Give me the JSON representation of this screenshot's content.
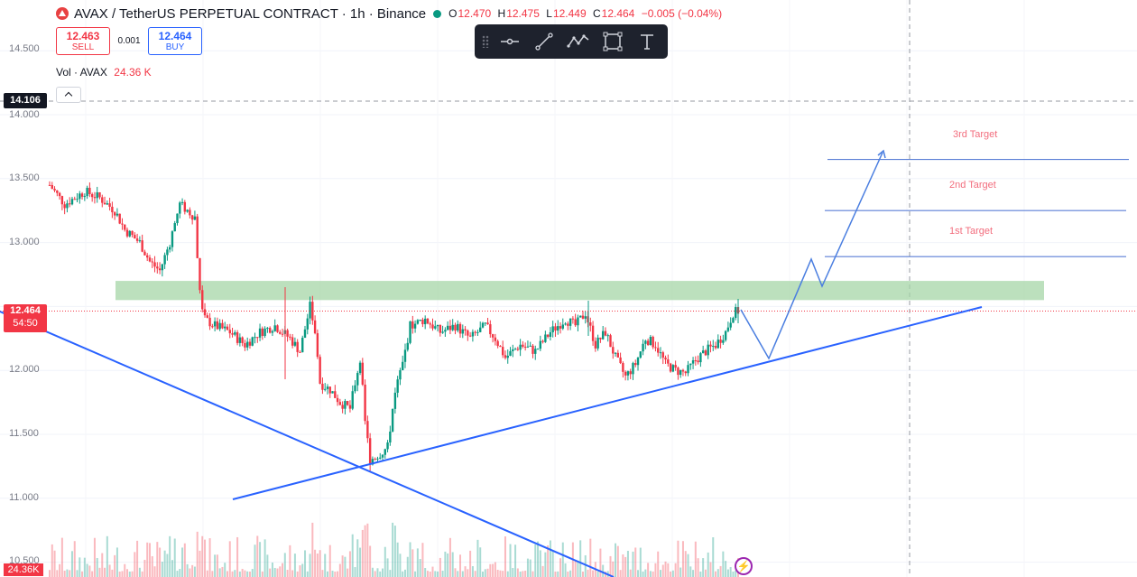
{
  "header": {
    "title": "AVAX / TetherUS PERPETUAL CONTRACT · 1h · Binance",
    "ohlc": [
      {
        "key": "O",
        "value": "12.470"
      },
      {
        "key": "H",
        "value": "12.475"
      },
      {
        "key": "L",
        "value": "12.449"
      },
      {
        "key": "C",
        "value": "12.464"
      }
    ],
    "change": "−0.005 (−0.04%)"
  },
  "trade": {
    "sell_price": "12.463",
    "sell_label": "SELL",
    "spread": "0.001",
    "buy_price": "12.464",
    "buy_label": "BUY"
  },
  "volume": {
    "label": "Vol · AVAX",
    "value": "24.36 K",
    "badge": "24.36K"
  },
  "toolbar": {
    "tools": [
      "horizontal-ray-icon",
      "trend-line-icon",
      "path-icon",
      "rectangle-icon",
      "text-icon"
    ]
  },
  "axis": {
    "ticks": [
      "14.500",
      "14.000",
      "13.500",
      "13.000",
      "12.000",
      "11.500",
      "11.000",
      "10.500"
    ],
    "crosshair_price": "14.106",
    "last_price": "12.464",
    "countdown": "54:50"
  },
  "targets": [
    "1st Target",
    "2nd Target",
    "3rd Target"
  ],
  "colors": {
    "up": "#089981",
    "down": "#f23645",
    "line": "#2962ff",
    "zone": "#a5d6a7"
  },
  "chart_data": {
    "type": "candlestick",
    "symbol": "AVAXUSDT.P",
    "interval": "1h",
    "ylim": [
      10.44,
      14.9
    ],
    "key_levels": {
      "resistance_zone": [
        12.55,
        12.7
      ],
      "targets": [
        12.89,
        13.25,
        13.65
      ],
      "last": 12.464
    },
    "close_path": [
      [
        0,
        13.45
      ],
      [
        6,
        13.3
      ],
      [
        14,
        13.4
      ],
      [
        20,
        13.35
      ],
      [
        26,
        13.25
      ],
      [
        30,
        13.1
      ],
      [
        36,
        13.0
      ],
      [
        40,
        12.85
      ],
      [
        44,
        12.78
      ],
      [
        48,
        13.0
      ],
      [
        52,
        13.3
      ],
      [
        55,
        13.25
      ],
      [
        58,
        13.2
      ],
      [
        60,
        12.6
      ],
      [
        62,
        12.4
      ],
      [
        66,
        12.35
      ],
      [
        72,
        12.3
      ],
      [
        78,
        12.2
      ],
      [
        84,
        12.3
      ],
      [
        90,
        12.35
      ],
      [
        96,
        12.25
      ],
      [
        100,
        12.15
      ],
      [
        104,
        12.5
      ],
      [
        106,
        12.3
      ],
      [
        108,
        11.9
      ],
      [
        112,
        11.85
      ],
      [
        116,
        11.75
      ],
      [
        120,
        11.7
      ],
      [
        124,
        12.1
      ],
      [
        126,
        11.6
      ],
      [
        128,
        11.3
      ],
      [
        132,
        11.35
      ],
      [
        135,
        11.4
      ],
      [
        138,
        11.85
      ],
      [
        141,
        12.05
      ],
      [
        144,
        12.35
      ],
      [
        150,
        12.4
      ],
      [
        156,
        12.3
      ],
      [
        162,
        12.35
      ],
      [
        168,
        12.25
      ],
      [
        174,
        12.35
      ],
      [
        178,
        12.25
      ],
      [
        182,
        12.1
      ],
      [
        188,
        12.2
      ],
      [
        194,
        12.15
      ],
      [
        200,
        12.3
      ],
      [
        206,
        12.4
      ],
      [
        210,
        12.35
      ],
      [
        214,
        12.45
      ],
      [
        218,
        12.2
      ],
      [
        222,
        12.3
      ],
      [
        226,
        12.1
      ],
      [
        230,
        11.95
      ],
      [
        234,
        12.05
      ],
      [
        238,
        12.25
      ],
      [
        242,
        12.2
      ],
      [
        246,
        12.05
      ],
      [
        250,
        12.0
      ],
      [
        254,
        11.98
      ],
      [
        258,
        12.08
      ],
      [
        262,
        12.15
      ],
      [
        266,
        12.2
      ],
      [
        270,
        12.3
      ],
      [
        273,
        12.45
      ],
      [
        275,
        12.464
      ]
    ]
  }
}
